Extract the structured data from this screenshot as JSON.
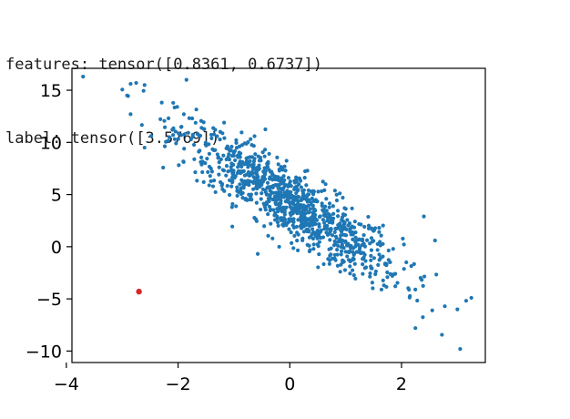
{
  "output": {
    "features_line": "features: tensor([0.8361, 0.6737])",
    "label_line": "label: tensor([3.5769])"
  },
  "colors": {
    "points": "#1f77b4",
    "highlight": "#d62728",
    "axes": "#000000"
  },
  "chart_data": {
    "type": "scatter",
    "title": "",
    "xlabel": "",
    "ylabel": "",
    "xlim": [
      -3.9,
      3.5
    ],
    "ylim": [
      -11.1,
      17.1
    ],
    "xticks": [
      -4,
      -2,
      0,
      2
    ],
    "xtick_labels": [
      "−4",
      "−2",
      "0",
      "2"
    ],
    "yticks": [
      15,
      10,
      5,
      0,
      -5,
      -10
    ],
    "ytick_labels": [
      "15",
      "10",
      "5",
      "0",
      "−5",
      "−10"
    ],
    "grid": false,
    "legend": "none",
    "highlight_point": {
      "x": -2.7,
      "y": -4.3
    },
    "n_points": 1000,
    "trend": {
      "slope": -3.4,
      "intercept": 4.2,
      "x_mean": 0,
      "x_std": 1.0,
      "noise_std": 1.7
    },
    "outliers": [
      {
        "x": -3.7,
        "y": 16.3
      },
      {
        "x": -2.75,
        "y": 15.7
      },
      {
        "x": -2.6,
        "y": 15.5
      },
      {
        "x": -1.85,
        "y": 16.0
      },
      {
        "x": -2.85,
        "y": 12.7
      },
      {
        "x": -2.6,
        "y": 9.5
      },
      {
        "x": 3.05,
        "y": -9.8
      },
      {
        "x": 3.25,
        "y": -4.9
      },
      {
        "x": 3.0,
        "y": -6.0
      },
      {
        "x": 2.55,
        "y": -6.1
      },
      {
        "x": 2.4,
        "y": 2.9
      },
      {
        "x": 2.6,
        "y": 0.6
      }
    ]
  }
}
